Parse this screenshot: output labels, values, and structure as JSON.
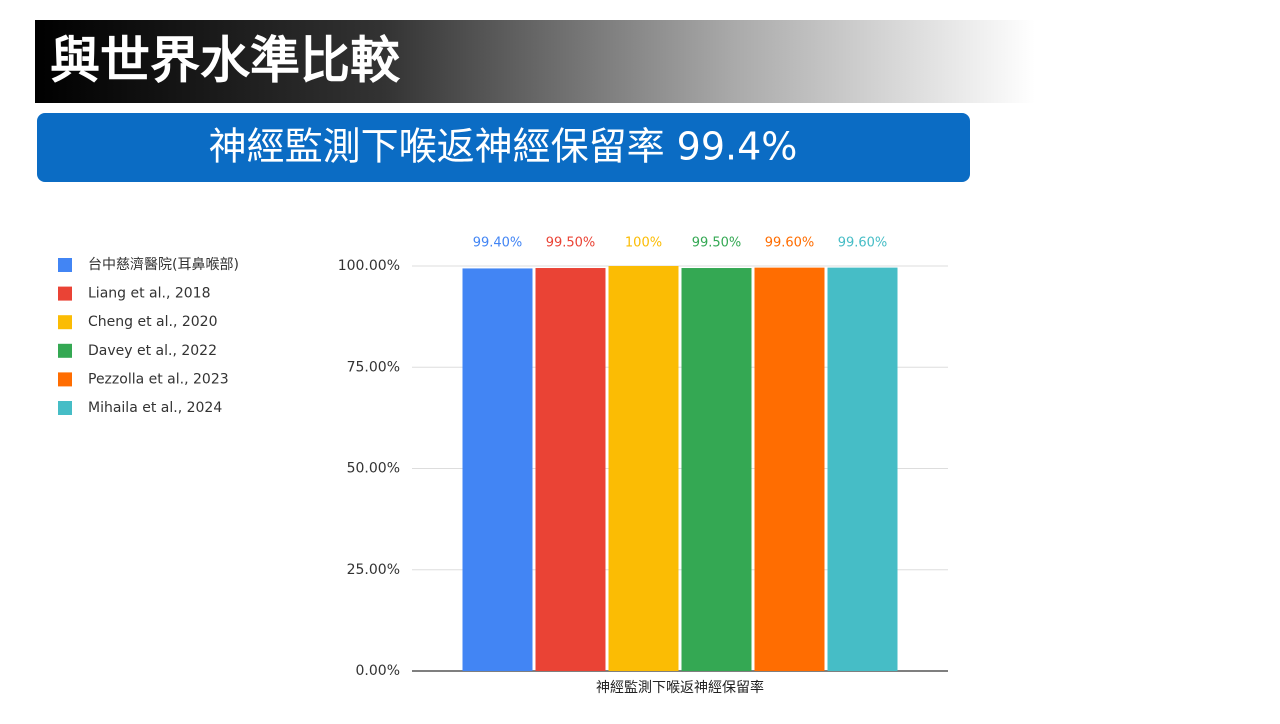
{
  "slide_title": "與世界水準比較",
  "slide_subtitle": "神經監測下喉返神經保留率 99.4%",
  "chart_data": {
    "type": "bar",
    "categories": [
      "神經監測下喉返神經保留率"
    ],
    "series": [
      {
        "name": "台中慈濟醫院(耳鼻喉部)",
        "color": "#4285f4",
        "values": [
          99.4
        ],
        "value_labels": [
          "99.40%"
        ]
      },
      {
        "name": "Liang et al., 2018",
        "color": "#ea4335",
        "values": [
          99.5
        ],
        "value_labels": [
          "99.50%"
        ]
      },
      {
        "name": "Cheng et al., 2020",
        "color": "#fbbc04",
        "values": [
          100
        ],
        "value_labels": [
          "100%"
        ]
      },
      {
        "name": "Davey et al., 2022",
        "color": "#34a853",
        "values": [
          99.5
        ],
        "value_labels": [
          "99.50%"
        ]
      },
      {
        "name": "Pezzolla et al., 2023",
        "color": "#ff6d01",
        "values": [
          99.6
        ],
        "value_labels": [
          "99.60%"
        ]
      },
      {
        "name": "Mihaila et al., 2024",
        "color": "#46bdc6",
        "values": [
          99.6
        ],
        "value_labels": [
          "99.60%"
        ]
      }
    ],
    "ylim": [
      0,
      100
    ],
    "yticks": [
      {
        "value": 0,
        "label": "0.00%"
      },
      {
        "value": 25,
        "label": "25.00%"
      },
      {
        "value": 50,
        "label": "50.00%"
      },
      {
        "value": 75,
        "label": "75.00%"
      },
      {
        "value": 100,
        "label": "100.00%"
      }
    ],
    "grid": true,
    "legend": "left"
  }
}
